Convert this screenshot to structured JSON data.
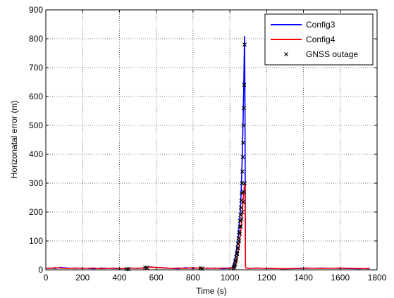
{
  "chart_data": {
    "type": "line",
    "title": "",
    "xlabel": "Time (s)",
    "ylabel": "Horizonatal error (m)",
    "xlim": [
      0,
      1800
    ],
    "ylim": [
      0,
      900
    ],
    "xticks": [
      0,
      200,
      400,
      600,
      800,
      1000,
      1200,
      1400,
      1600,
      1800
    ],
    "yticks": [
      0,
      100,
      200,
      300,
      400,
      500,
      600,
      700,
      800,
      900
    ],
    "grid": true,
    "legend_position": "top-right",
    "series": [
      {
        "name": "Config3",
        "color": "#0000ff",
        "style": "line",
        "x": [
          0,
          20,
          50,
          80,
          120,
          160,
          200,
          260,
          300,
          360,
          400,
          430,
          460,
          500,
          540,
          560,
          600,
          640,
          680,
          720,
          760,
          800,
          840,
          880,
          920,
          960,
          1000,
          1010,
          1020,
          1030,
          1035,
          1040,
          1045,
          1050,
          1055,
          1060,
          1063,
          1066,
          1069,
          1072,
          1074,
          1076,
          1078,
          1080,
          1082,
          1085,
          1090,
          1100,
          1150,
          1200,
          1300,
          1400,
          1500,
          1600,
          1700,
          1760
        ],
        "y": [
          5,
          6,
          5,
          8,
          6,
          5,
          6,
          4,
          6,
          5,
          4,
          5,
          6,
          5,
          7,
          10,
          8,
          6,
          5,
          4,
          7,
          5,
          6,
          5,
          6,
          4,
          5,
          6,
          20,
          45,
          60,
          85,
          110,
          150,
          190,
          250,
          300,
          360,
          430,
          520,
          580,
          650,
          740,
          808,
          600,
          8,
          6,
          5,
          6,
          5,
          4,
          5,
          6,
          5,
          4,
          5
        ]
      },
      {
        "name": "Config4",
        "color": "#ff0000",
        "style": "line",
        "x": [
          0,
          20,
          50,
          80,
          120,
          160,
          200,
          260,
          300,
          360,
          400,
          430,
          460,
          500,
          540,
          560,
          600,
          640,
          680,
          720,
          760,
          800,
          840,
          880,
          920,
          960,
          1000,
          1010,
          1020,
          1030,
          1035,
          1040,
          1045,
          1050,
          1055,
          1060,
          1063,
          1066,
          1069,
          1072,
          1076,
          1080,
          1082,
          1085,
          1090,
          1100,
          1150,
          1200,
          1300,
          1400,
          1500,
          1600,
          1700,
          1760
        ],
        "y": [
          6,
          5,
          7,
          6,
          5,
          6,
          5,
          6,
          4,
          6,
          5,
          4,
          6,
          5,
          7,
          9,
          8,
          7,
          5,
          6,
          5,
          7,
          5,
          6,
          5,
          6,
          6,
          5,
          12,
          20,
          30,
          45,
          60,
          80,
          110,
          140,
          160,
          180,
          210,
          240,
          270,
          300,
          290,
          8,
          6,
          5,
          6,
          5,
          4,
          6,
          5,
          6,
          5,
          4
        ]
      },
      {
        "name": "GNSS outage",
        "color": "#000000",
        "style": "markers",
        "marker": "x",
        "x": [
          440,
          450,
          540,
          550,
          840,
          850,
          1020,
          1025,
          1030,
          1035,
          1038,
          1041,
          1044,
          1047,
          1050,
          1053,
          1055,
          1058,
          1060,
          1062,
          1064,
          1066,
          1068,
          1070,
          1072,
          1074,
          1076,
          1078,
          1080,
          1025,
          1030,
          1035,
          1040,
          1045,
          1050,
          1055,
          1060,
          1064,
          1068,
          1072,
          1076,
          1080
        ],
        "y": [
          3,
          2,
          8,
          7,
          5,
          4,
          5,
          15,
          30,
          45,
          60,
          75,
          90,
          110,
          130,
          150,
          170,
          190,
          215,
          240,
          265,
          300,
          340,
          390,
          440,
          500,
          560,
          640,
          780,
          10,
          20,
          35,
          55,
          75,
          100,
          125,
          150,
          175,
          200,
          235,
          270,
          300
        ]
      }
    ]
  }
}
